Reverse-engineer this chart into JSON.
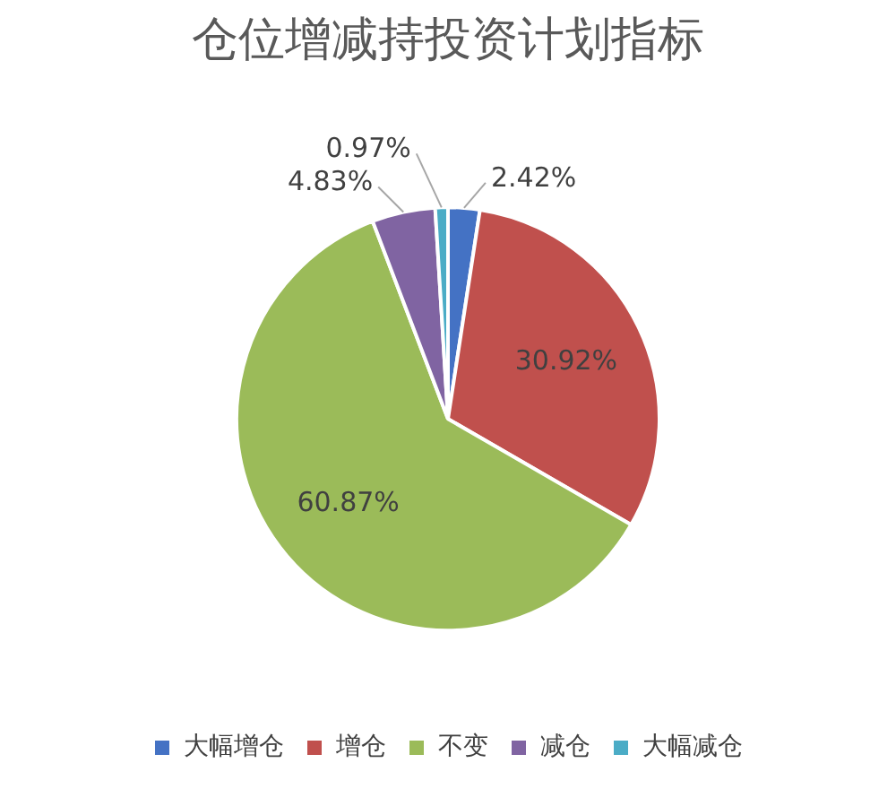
{
  "chart_data": {
    "type": "pie",
    "title": "仓位增减持投资计划指标",
    "categories": [
      "大幅增仓",
      "增仓",
      "不变",
      "减仓",
      "大幅减仓"
    ],
    "values": [
      2.42,
      30.92,
      60.87,
      4.83,
      0.97
    ],
    "colors": [
      "#4472c4",
      "#c0504d",
      "#9bbb59",
      "#8064a2",
      "#4bacc6"
    ],
    "value_labels": [
      "2.42%",
      "30.92%",
      "60.87%",
      "4.83%",
      "0.97%"
    ],
    "legend": "bottom"
  }
}
